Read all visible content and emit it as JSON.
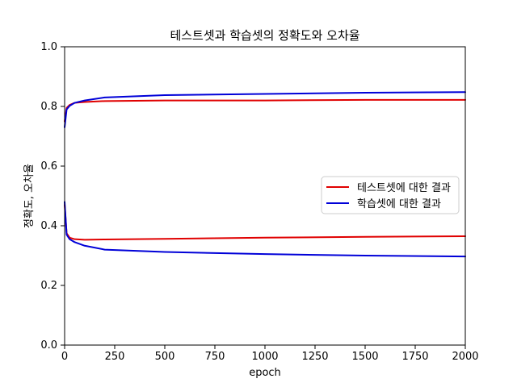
{
  "chart_data": {
    "type": "line",
    "title": "테스트셋과 학습셋의 정확도와 오차율",
    "xlabel": "epoch",
    "ylabel": "정확도, 오차율",
    "xlim": [
      0,
      2000
    ],
    "ylim": [
      0.0,
      1.0
    ],
    "xticks": [
      0,
      250,
      500,
      750,
      1000,
      1250,
      1500,
      1750,
      2000
    ],
    "xtick_labels": [
      "0",
      "250",
      "500",
      "750",
      "1000",
      "1250",
      "1500",
      "1750",
      "2000"
    ],
    "yticks": [
      0.0,
      0.2,
      0.4,
      0.6,
      0.8,
      1.0
    ],
    "ytick_labels": [
      "0.0",
      "0.2",
      "0.4",
      "0.6",
      "0.8",
      "1.0"
    ],
    "grid": false,
    "legend_position": "center-right",
    "legend": [
      {
        "label": "테스트셋에 대한 결과",
        "color": "#e00000"
      },
      {
        "label": "학습셋에 대한 결과",
        "color": "#0000d8"
      }
    ],
    "series": [
      {
        "name": "테스트셋에 대한 결과",
        "metric": "accuracy",
        "color": "#e00000",
        "x": [
          0,
          10,
          25,
          50,
          100,
          200,
          500,
          1000,
          1500,
          2000
        ],
        "y": [
          0.75,
          0.795,
          0.805,
          0.812,
          0.815,
          0.818,
          0.82,
          0.82,
          0.822,
          0.822
        ]
      },
      {
        "name": "학습셋에 대한 결과",
        "metric": "accuracy",
        "color": "#0000d8",
        "x": [
          0,
          10,
          25,
          50,
          100,
          200,
          500,
          1000,
          1500,
          2000
        ],
        "y": [
          0.73,
          0.79,
          0.802,
          0.812,
          0.82,
          0.83,
          0.838,
          0.842,
          0.846,
          0.848
        ]
      },
      {
        "name": "테스트셋에 대한 결과",
        "metric": "loss",
        "color": "#e00000",
        "x": [
          0,
          10,
          25,
          50,
          100,
          200,
          500,
          1000,
          1500,
          2000
        ],
        "y": [
          0.47,
          0.375,
          0.36,
          0.355,
          0.353,
          0.354,
          0.356,
          0.36,
          0.363,
          0.365
        ]
      },
      {
        "name": "학습셋에 대한 결과",
        "metric": "loss",
        "color": "#0000d8",
        "x": [
          0,
          10,
          25,
          50,
          100,
          200,
          500,
          1000,
          1500,
          2000
        ],
        "y": [
          0.48,
          0.37,
          0.355,
          0.345,
          0.333,
          0.32,
          0.312,
          0.305,
          0.3,
          0.297
        ]
      }
    ]
  }
}
